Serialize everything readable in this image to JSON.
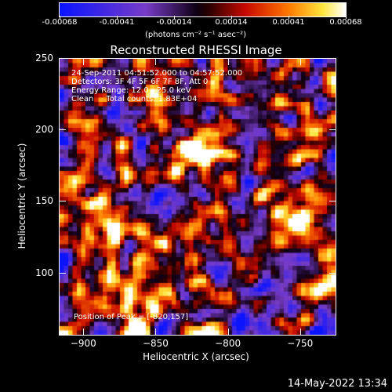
{
  "colorbar": {
    "ticks": [
      "-0.00068",
      "-0.00041",
      "-0.00014",
      "0.00014",
      "0.00041",
      "0.00068"
    ],
    "unit": "(photons cm⁻² s⁻¹ asec⁻²)"
  },
  "title": "Reconstructed RHESSI Image",
  "info": {
    "time": "24-Sep-2011 04:51:52.000 to 04:57:52.000",
    "detectors": "Detectors: 3F 4F 5F 6F 7F 8F, Att 0",
    "energy": "Energy Range: 12.0 - 25.0 keV",
    "clean": "Clean     Total counts: 1.83E+04",
    "peak": "Position of Peak = [-820,157]"
  },
  "axes": {
    "x_label": "Heliocentric X (arcsec)",
    "y_label": "Heliocentric Y (arcsec)",
    "x_ticks": [
      "-900",
      "-850",
      "-800",
      "-750"
    ],
    "y_ticks": [
      "250",
      "200",
      "150",
      "100"
    ],
    "x_range": [
      -917,
      -726
    ],
    "y_range": [
      57,
      250
    ]
  },
  "timestamp": "14-May-2022 13:34",
  "colors": {
    "background": "#000000",
    "foreground": "#ffffff"
  }
}
